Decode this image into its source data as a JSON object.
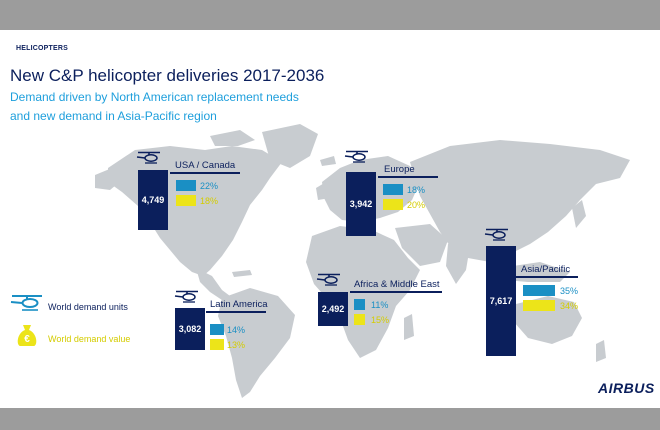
{
  "header": {
    "section": "HELICOPTERS",
    "title": "New C&P helicopter deliveries 2017-2036",
    "subtitle_line1": "Demand driven by North American replacement needs",
    "subtitle_line2": "and new demand in Asia-Pacific region"
  },
  "colors": {
    "navy": "#0b1f5c",
    "teal": "#1a8fc4",
    "yellow": "#ece419",
    "map_grey": "#c8ccd0",
    "frame_grey": "#9c9c9c"
  },
  "regions": [
    {
      "name": "USA / Canada",
      "units": "4,749",
      "units_share": "22%",
      "value_share": "18%"
    },
    {
      "name": "Europe",
      "units": "3,942",
      "units_share": "18%",
      "value_share": "20%"
    },
    {
      "name": "Africa & Middle East",
      "units": "2,492",
      "units_share": "11%",
      "value_share": "15%"
    },
    {
      "name": "Asia/Pacific",
      "units": "7,617",
      "units_share": "35%",
      "value_share": "34%"
    },
    {
      "name": "Latin America",
      "units": "3,082",
      "units_share": "14%",
      "value_share": "13%"
    }
  ],
  "legend": {
    "units_label": "World demand units",
    "value_label": "World demand value",
    "units_icon": "helicopter-icon",
    "value_icon": "euro-moneybag-icon"
  },
  "logo": "AIRBUS"
}
